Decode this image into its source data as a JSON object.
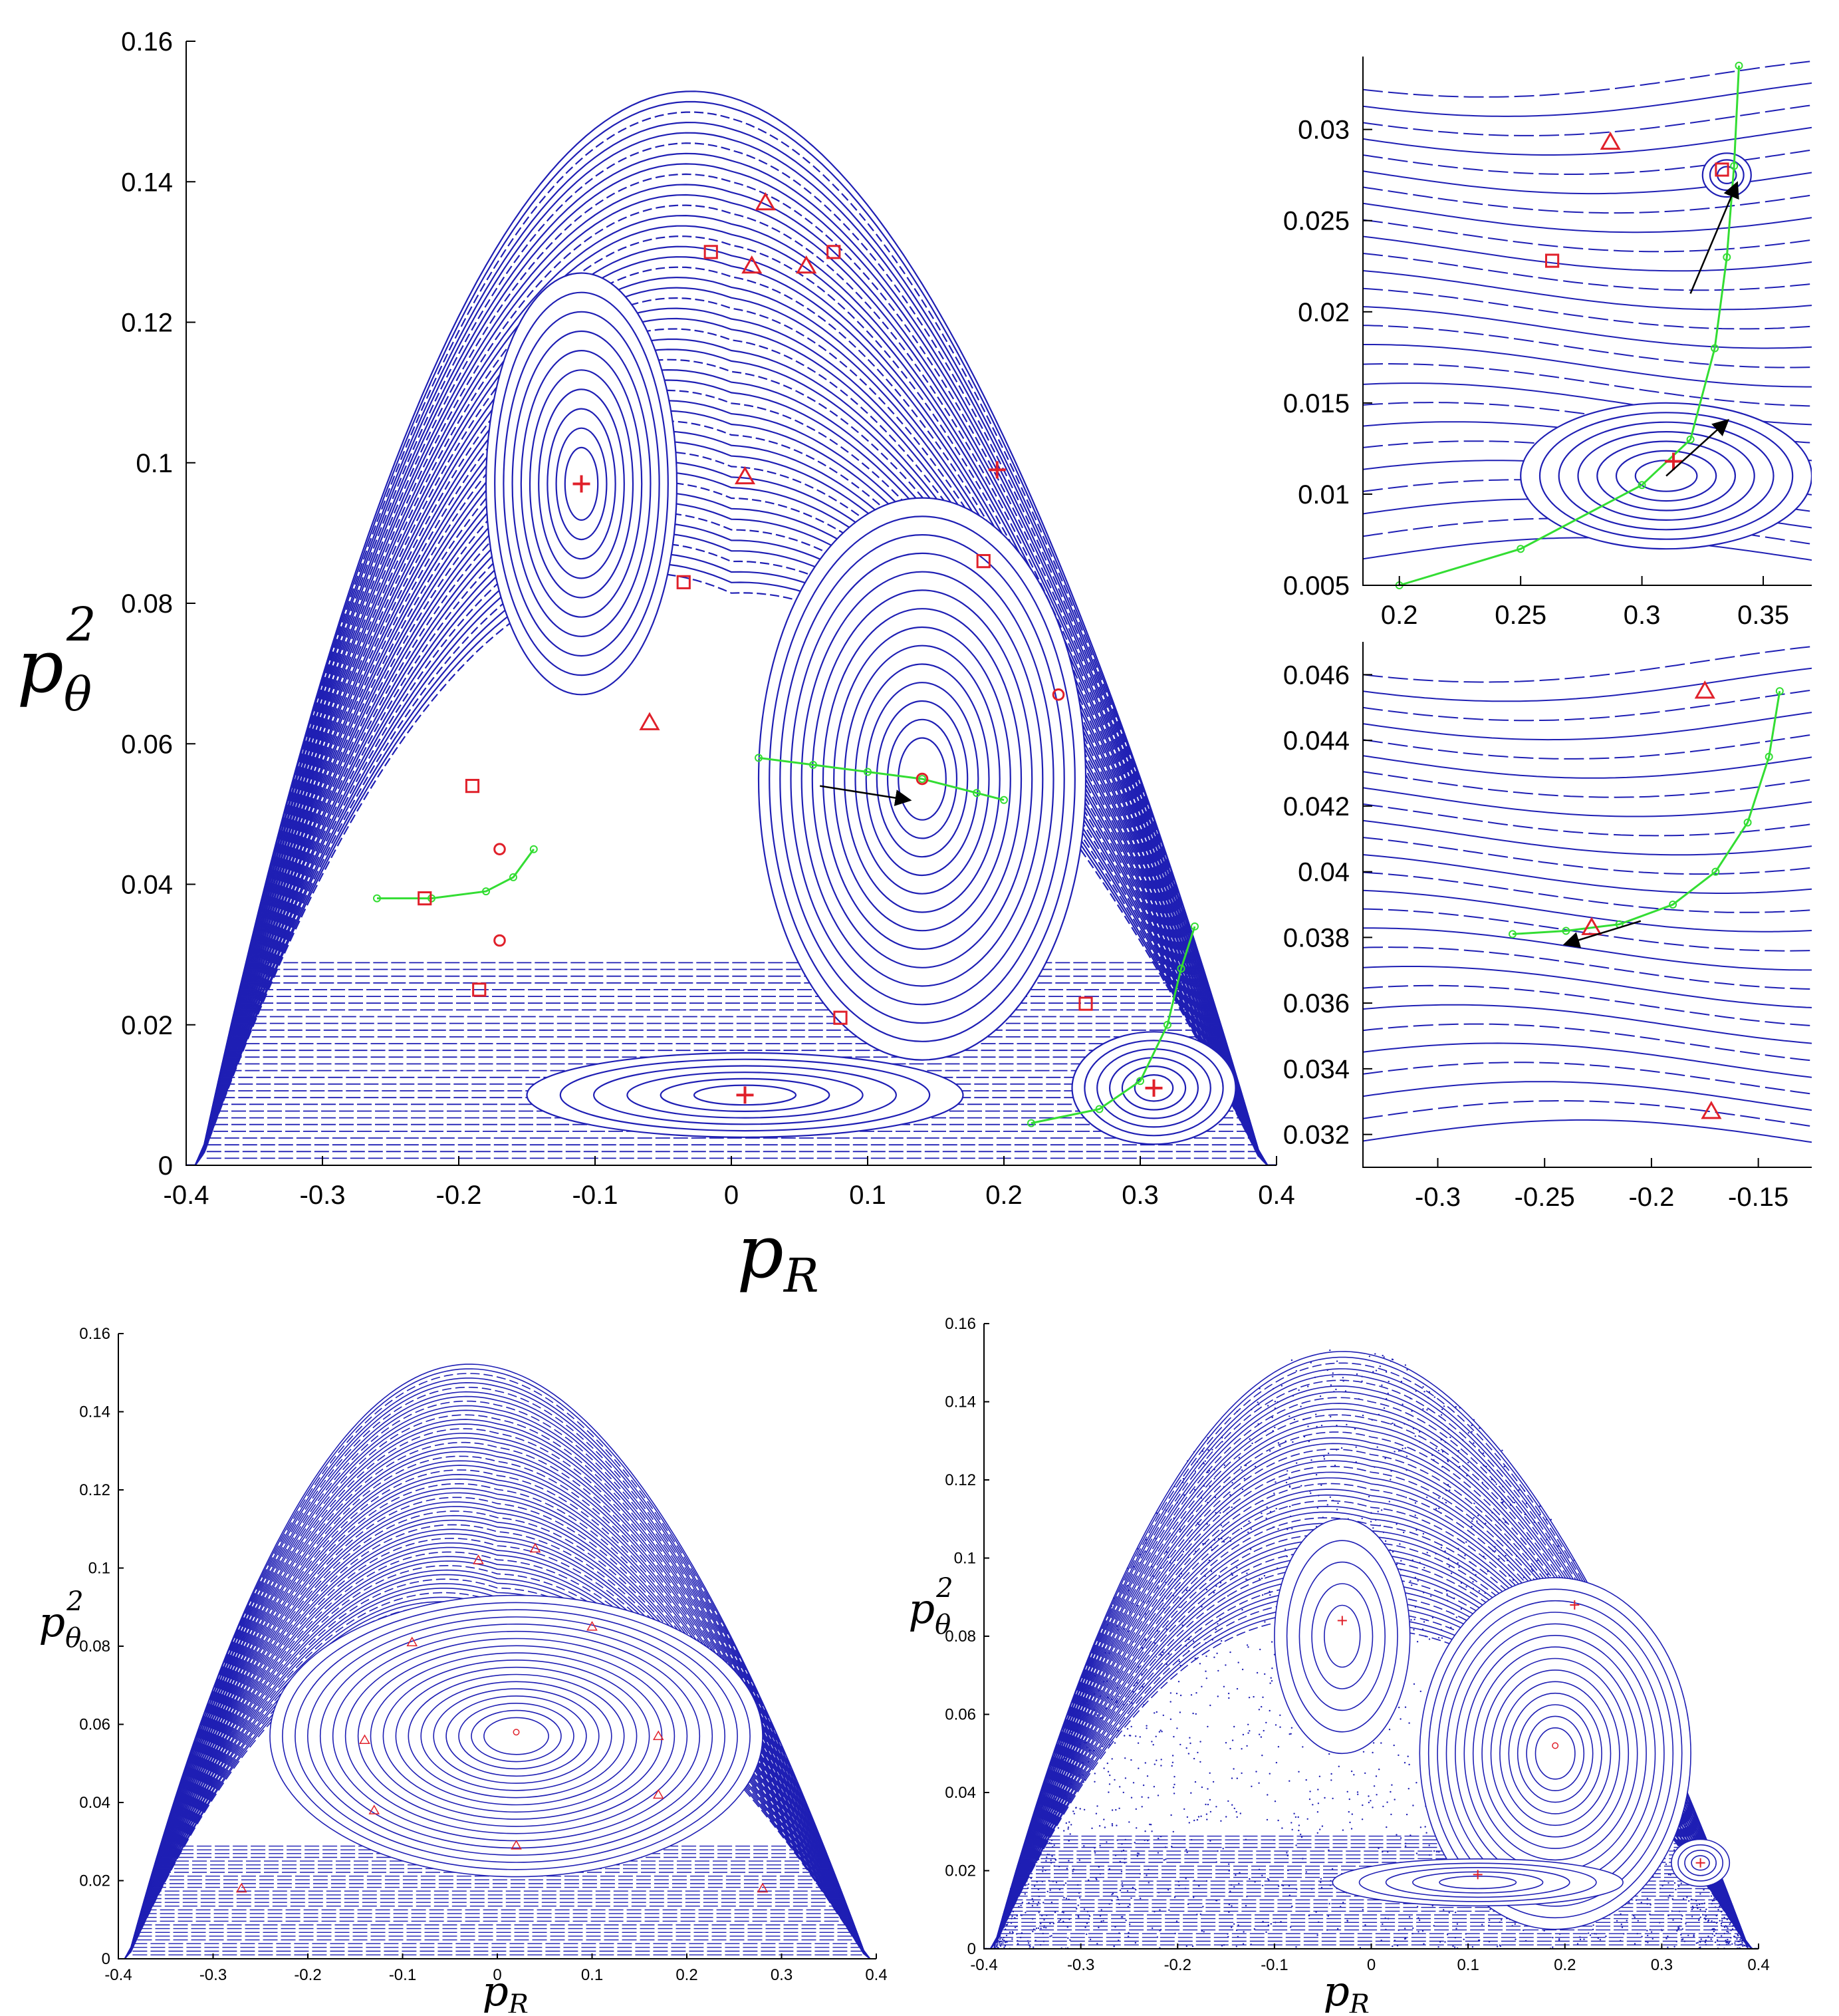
{
  "chart_data": [
    {
      "id": "main",
      "type": "scatter",
      "title": "",
      "xlabel": "p_R",
      "ylabel": "p_θ^2",
      "xlim": [
        -0.4,
        0.4
      ],
      "ylim": [
        0,
        0.16
      ],
      "xticks": [
        "-0.4",
        "-0.3",
        "-0.2",
        "-0.1",
        "0",
        "0.1",
        "0.2",
        "0.3",
        "0.4"
      ],
      "yticks": [
        "0",
        "0.02",
        "0.04",
        "0.06",
        "0.08",
        "0.1",
        "0.12",
        "0.14",
        "0.16"
      ],
      "boundary_peak": {
        "x": 0.0,
        "y": 0.153
      },
      "islands": [
        {
          "cx": 0.14,
          "cy": 0.055,
          "ax": 0.12,
          "ay": 0.04,
          "n": 14
        },
        {
          "cx": -0.11,
          "cy": 0.097,
          "ax": 0.07,
          "ay": 0.03,
          "n": 10
        },
        {
          "cx": 0.01,
          "cy": 0.01,
          "ax": 0.16,
          "ay": 0.006,
          "n": 6
        },
        {
          "cx": 0.31,
          "cy": 0.011,
          "ax": 0.06,
          "ay": 0.008,
          "n": 6
        }
      ],
      "fixed_points": [
        {
          "x": -0.11,
          "y": 0.097,
          "marker": "plus"
        },
        {
          "x": 0.195,
          "y": 0.099,
          "marker": "plus"
        },
        {
          "x": 0.01,
          "y": 0.01,
          "marker": "plus"
        },
        {
          "x": 0.31,
          "y": 0.011,
          "marker": "plus"
        },
        {
          "x": -0.015,
          "y": 0.13,
          "marker": "square"
        },
        {
          "x": 0.075,
          "y": 0.13,
          "marker": "square"
        },
        {
          "x": -0.035,
          "y": 0.083,
          "marker": "square"
        },
        {
          "x": -0.19,
          "y": 0.054,
          "marker": "square"
        },
        {
          "x": -0.225,
          "y": 0.038,
          "marker": "square"
        },
        {
          "x": -0.185,
          "y": 0.025,
          "marker": "square"
        },
        {
          "x": 0.08,
          "y": 0.021,
          "marker": "square"
        },
        {
          "x": 0.26,
          "y": 0.023,
          "marker": "square"
        },
        {
          "x": 0.185,
          "y": 0.086,
          "marker": "square"
        },
        {
          "x": 0.015,
          "y": 0.128,
          "marker": "triangle"
        },
        {
          "x": 0.055,
          "y": 0.128,
          "marker": "triangle"
        },
        {
          "x": 0.025,
          "y": 0.137,
          "marker": "triangle"
        },
        {
          "x": 0.01,
          "y": 0.098,
          "marker": "triangle"
        },
        {
          "x": -0.06,
          "y": 0.063,
          "marker": "triangle"
        },
        {
          "x": 0.14,
          "y": 0.055,
          "marker": "circle"
        },
        {
          "x": -0.17,
          "y": 0.045,
          "marker": "circle"
        },
        {
          "x": -0.17,
          "y": 0.032,
          "marker": "circle"
        },
        {
          "x": 0.24,
          "y": 0.067,
          "marker": "circle"
        }
      ],
      "green_curves": [
        [
          [
            0.02,
            0.058
          ],
          [
            0.06,
            0.057
          ],
          [
            0.1,
            0.056
          ],
          [
            0.14,
            0.055
          ],
          [
            0.18,
            0.053
          ],
          [
            0.2,
            0.052
          ]
        ],
        [
          [
            -0.26,
            0.038
          ],
          [
            -0.22,
            0.038
          ],
          [
            -0.18,
            0.039
          ],
          [
            -0.16,
            0.041
          ],
          [
            -0.145,
            0.045
          ]
        ],
        [
          [
            0.22,
            0.006
          ],
          [
            0.27,
            0.008
          ],
          [
            0.3,
            0.012
          ],
          [
            0.32,
            0.02
          ],
          [
            0.33,
            0.028
          ],
          [
            0.34,
            0.034
          ]
        ]
      ],
      "arrows": [
        [
          [
            0.065,
            0.054
          ],
          [
            0.13,
            0.052
          ]
        ]
      ]
    },
    {
      "id": "inset-top",
      "type": "scatter",
      "title": "",
      "xlabel": "",
      "ylabel": "",
      "xlim": [
        0.185,
        0.37
      ],
      "ylim": [
        0.005,
        0.034
      ],
      "xticks": [
        "0.2",
        "0.25",
        "0.3",
        "0.35"
      ],
      "yticks": [
        "0.005",
        "0.01",
        "0.015",
        "0.02",
        "0.025",
        "0.03"
      ],
      "islands": [
        {
          "cx": 0.31,
          "cy": 0.011,
          "ax": 0.06,
          "ay": 0.004,
          "n": 7
        },
        {
          "cx": 0.335,
          "cy": 0.0275,
          "ax": 0.01,
          "ay": 0.0012,
          "n": 3
        }
      ],
      "fixed_points": [
        {
          "x": 0.313,
          "y": 0.0118,
          "marker": "plus"
        },
        {
          "x": 0.263,
          "y": 0.0228,
          "marker": "square"
        },
        {
          "x": 0.333,
          "y": 0.0278,
          "marker": "square"
        },
        {
          "x": 0.287,
          "y": 0.0293,
          "marker": "triangle"
        }
      ],
      "green_curves": [
        [
          [
            0.2,
            0.005
          ],
          [
            0.25,
            0.007
          ],
          [
            0.3,
            0.0105
          ],
          [
            0.32,
            0.013
          ],
          [
            0.33,
            0.018
          ],
          [
            0.335,
            0.023
          ],
          [
            0.338,
            0.028
          ],
          [
            0.34,
            0.0335
          ]
        ]
      ],
      "arrows": [
        [
          [
            0.31,
            0.011
          ],
          [
            0.335,
            0.014
          ]
        ],
        [
          [
            0.32,
            0.021
          ],
          [
            0.339,
            0.027
          ]
        ]
      ]
    },
    {
      "id": "inset-middle",
      "type": "scatter",
      "title": "",
      "xlabel": "",
      "ylabel": "",
      "xlim": [
        -0.335,
        -0.125
      ],
      "ylim": [
        0.031,
        0.047
      ],
      "xticks": [
        "-0.3",
        "-0.25",
        "-0.2",
        "-0.15"
      ],
      "yticks": [
        "0.032",
        "0.034",
        "0.036",
        "0.038",
        "0.04",
        "0.042",
        "0.044",
        "0.046"
      ],
      "fixed_points": [
        {
          "x": -0.228,
          "y": 0.0383,
          "marker": "triangle"
        },
        {
          "x": -0.175,
          "y": 0.0455,
          "marker": "triangle"
        },
        {
          "x": -0.172,
          "y": 0.0327,
          "marker": "triangle"
        }
      ],
      "green_curves": [
        [
          [
            -0.265,
            0.0381
          ],
          [
            -0.24,
            0.0382
          ],
          [
            -0.215,
            0.0384
          ],
          [
            -0.19,
            0.039
          ],
          [
            -0.17,
            0.04
          ],
          [
            -0.155,
            0.0415
          ],
          [
            -0.145,
            0.0435
          ],
          [
            -0.14,
            0.0455
          ]
        ]
      ],
      "arrows": [
        [
          [
            -0.205,
            0.0385
          ],
          [
            -0.24,
            0.0378
          ]
        ]
      ]
    },
    {
      "id": "bottom-left",
      "type": "scatter",
      "title": "",
      "xlabel": "p_R",
      "ylabel": "p_θ^2",
      "xlim": [
        -0.4,
        0.4
      ],
      "ylim": [
        0,
        0.16
      ],
      "xticks": [
        "-0.4",
        "-0.3",
        "-0.2",
        "-0.1",
        "0",
        "0.1",
        "0.2",
        "0.3",
        "0.4"
      ],
      "yticks": [
        "0",
        "0.02",
        "0.04",
        "0.06",
        "0.08",
        "0.1",
        "0.12",
        "0.14",
        "0.16"
      ],
      "boundary_peak": {
        "x": 0.0,
        "y": 0.152
      },
      "islands": [
        {
          "cx": 0.02,
          "cy": 0.057,
          "ax": 0.26,
          "ay": 0.036,
          "n": 18
        }
      ],
      "fixed_points": [
        {
          "x": 0.02,
          "y": 0.058,
          "marker": "circle"
        },
        {
          "x": -0.02,
          "y": 0.102,
          "marker": "triangle"
        },
        {
          "x": 0.04,
          "y": 0.105,
          "marker": "triangle"
        },
        {
          "x": -0.09,
          "y": 0.081,
          "marker": "triangle"
        },
        {
          "x": 0.1,
          "y": 0.085,
          "marker": "triangle"
        },
        {
          "x": -0.14,
          "y": 0.056,
          "marker": "triangle"
        },
        {
          "x": 0.17,
          "y": 0.057,
          "marker": "triangle"
        },
        {
          "x": -0.13,
          "y": 0.038,
          "marker": "triangle"
        },
        {
          "x": 0.17,
          "y": 0.042,
          "marker": "triangle"
        },
        {
          "x": 0.02,
          "y": 0.029,
          "marker": "triangle"
        },
        {
          "x": -0.27,
          "y": 0.018,
          "marker": "triangle"
        },
        {
          "x": 0.28,
          "y": 0.018,
          "marker": "triangle"
        }
      ]
    },
    {
      "id": "bottom-right",
      "type": "scatter",
      "title": "",
      "xlabel": "p_R",
      "ylabel": "p_θ^2",
      "xlim": [
        -0.4,
        0.4
      ],
      "ylim": [
        0,
        0.16
      ],
      "xticks": [
        "-0.4",
        "-0.3",
        "-0.2",
        "-0.1",
        "0",
        "0.1",
        "0.2",
        "0.3",
        "0.4"
      ],
      "yticks": [
        "0",
        "0.02",
        "0.04",
        "0.06",
        "0.08",
        "0.1",
        "0.12",
        "0.14",
        "0.16"
      ],
      "boundary_peak": {
        "x": 0.0,
        "y": 0.153
      },
      "islands": [
        {
          "cx": 0.19,
          "cy": 0.05,
          "ax": 0.14,
          "ay": 0.045,
          "n": 14
        },
        {
          "cx": -0.03,
          "cy": 0.08,
          "ax": 0.07,
          "ay": 0.03,
          "n": 5
        },
        {
          "cx": 0.11,
          "cy": 0.017,
          "ax": 0.15,
          "ay": 0.006,
          "n": 5
        },
        {
          "cx": 0.34,
          "cy": 0.022,
          "ax": 0.03,
          "ay": 0.006,
          "n": 4
        }
      ],
      "fixed_points": [
        {
          "x": -0.03,
          "y": 0.084,
          "marker": "plus"
        },
        {
          "x": 0.19,
          "y": 0.052,
          "marker": "circle"
        },
        {
          "x": 0.21,
          "y": 0.088,
          "marker": "plus"
        },
        {
          "x": 0.11,
          "y": 0.019,
          "marker": "plus"
        },
        {
          "x": 0.34,
          "y": 0.022,
          "marker": "plus"
        }
      ],
      "chaotic_sea": true
    }
  ],
  "colors": {
    "orbit": "#1f1fb4",
    "fixed_point": "#e0202a",
    "curve": "#33dd33",
    "arrow": "#000000"
  }
}
